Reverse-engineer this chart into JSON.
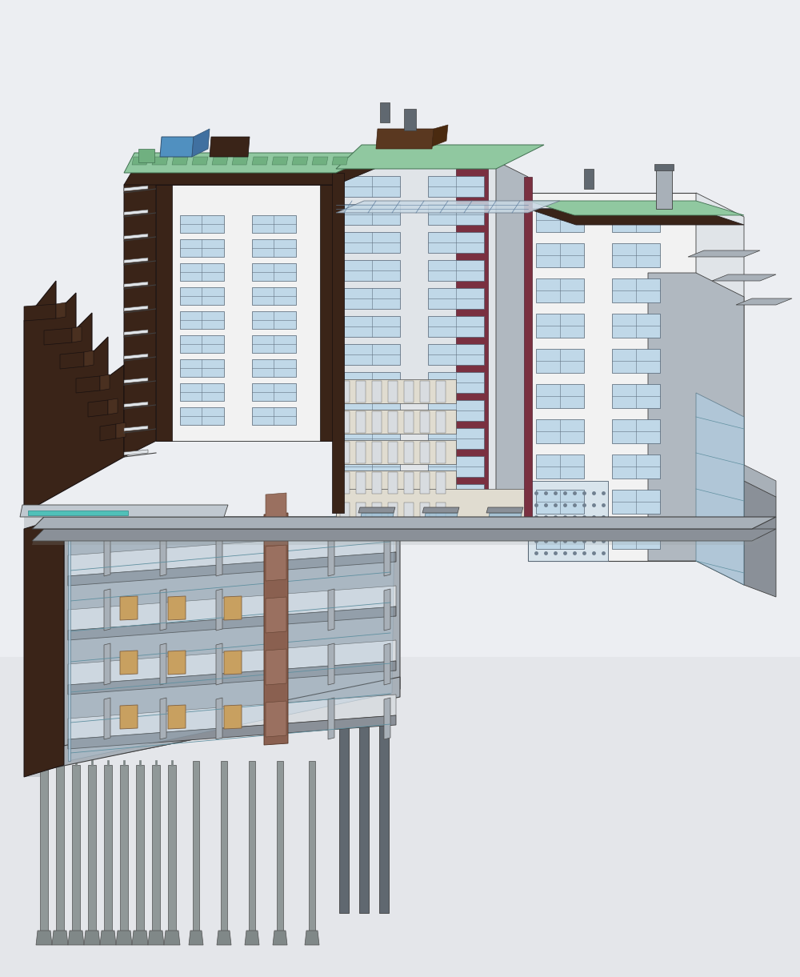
{
  "bg": "#e8eaee",
  "dark_brown": "#3a2418",
  "medium_brown": "#6b4530",
  "white_facade": "#f2f2f2",
  "light_facade": "#e0e4e8",
  "gray_facade": "#b0b8c0",
  "dark_gray": "#606870",
  "steel_gray": "#8a9098",
  "concrete_gray": "#a8b0b8",
  "roof_green": "#90c8a0",
  "roof_green2": "#70b080",
  "glass_blue": "#b0cce0",
  "glass_blue2": "#98bcd4",
  "interior_light": "#d8dce0",
  "interior_cream": "#e0dcd0",
  "pile_col": "#909898",
  "crimson": "#7a3040",
  "window_col": "#c0d8e8",
  "sky_bg": "#eceef2",
  "shadow_col": "#c8ccd4",
  "tan_door": "#c8a060",
  "lift_brown": "#8a6050"
}
